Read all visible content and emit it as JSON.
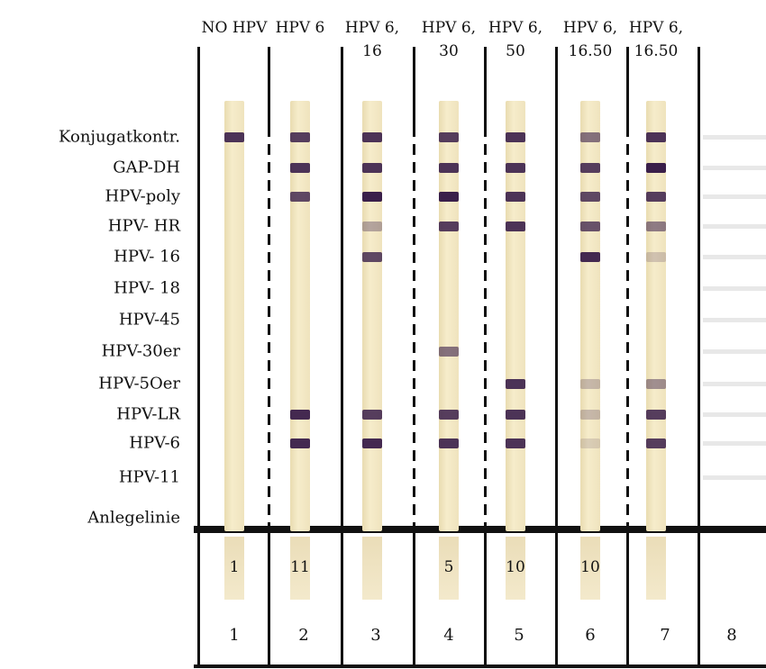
{
  "headers": [
    "NO HPV",
    "HPV 6",
    "HPV 6,\n16",
    "HPV 6,\n30",
    "HPV 6,\n50",
    "HPV 6,\n16.50",
    "HPV 6,\n16.50"
  ],
  "row_labels": [
    "Konjugatkontr.",
    "GAP-DH",
    "HPV-poly",
    "HPV- HR",
    "HPV- 16",
    "HPV- 18",
    "HPV-45",
    "HPV-30er",
    "HPV-5Oer",
    "HPV-LR",
    "HPV-6",
    "HPV-11",
    "Anlegelinie"
  ],
  "strip_numbers": [
    "1",
    "11",
    "",
    "5",
    "10",
    "10",
    ""
  ],
  "lane_numbers": [
    "1",
    "2",
    "3",
    "4",
    "5",
    "6",
    "7",
    "8"
  ],
  "band_color": "#3a1f4a",
  "strip_bands": [
    [
      [
        0,
        0.9
      ]
    ],
    [
      [
        0,
        0.85
      ],
      [
        1,
        0.9
      ],
      [
        2,
        0.8
      ],
      [
        9,
        0.95
      ],
      [
        10,
        0.95
      ]
    ],
    [
      [
        0,
        0.9
      ],
      [
        1,
        0.9
      ],
      [
        2,
        1
      ],
      [
        3,
        0.35
      ],
      [
        4,
        0.8
      ],
      [
        9,
        0.85
      ],
      [
        10,
        0.95
      ]
    ],
    [
      [
        0,
        0.85
      ],
      [
        1,
        0.9
      ],
      [
        2,
        1
      ],
      [
        3,
        0.85
      ],
      [
        7,
        0.6
      ],
      [
        9,
        0.85
      ],
      [
        10,
        0.9
      ]
    ],
    [
      [
        0,
        0.9
      ],
      [
        1,
        0.9
      ],
      [
        2,
        0.9
      ],
      [
        3,
        0.9
      ],
      [
        8,
        0.9
      ],
      [
        9,
        0.9
      ],
      [
        10,
        0.9
      ]
    ],
    [
      [
        0,
        0.6
      ],
      [
        1,
        0.85
      ],
      [
        2,
        0.8
      ],
      [
        3,
        0.75
      ],
      [
        4,
        0.95
      ],
      [
        8,
        0.25
      ],
      [
        9,
        0.25
      ],
      [
        10,
        0.15
      ]
    ],
    [
      [
        0,
        0.9
      ],
      [
        1,
        1
      ],
      [
        2,
        0.85
      ],
      [
        3,
        0.55
      ],
      [
        4,
        0.2
      ],
      [
        8,
        0.45
      ],
      [
        9,
        0.85
      ],
      [
        10,
        0.85
      ]
    ]
  ]
}
